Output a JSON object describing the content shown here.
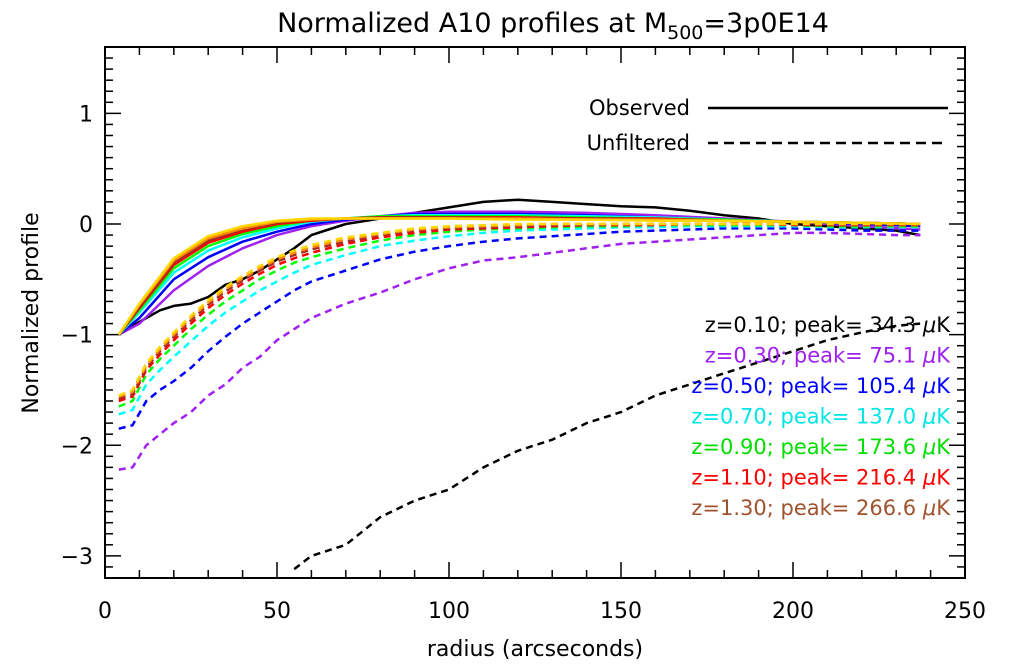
{
  "chart_data": {
    "type": "line",
    "title_main": "Normalized A10 profiles at M",
    "title_sub": "500",
    "title_tail": "=3p0E14",
    "xlabel": "radius (arcseconds)",
    "ylabel": "Normalized profile",
    "xlim": [
      0,
      250
    ],
    "ylim": [
      -3.2,
      1.6
    ],
    "xticks": [
      0,
      50,
      100,
      150,
      200,
      250
    ],
    "xtick_labels": [
      "0",
      "50",
      "100",
      "150",
      "200",
      "250"
    ],
    "yticks": [
      1,
      0,
      -1,
      -2,
      -3
    ],
    "ytick_labels": [
      "1",
      "0",
      "−1",
      "−2",
      "−3"
    ],
    "grid": false,
    "legend": [
      {
        "label": "Observed",
        "style": "solid"
      },
      {
        "label": "Unfiltered",
        "style": "dashed"
      }
    ],
    "colors": {
      "z010": "#000000",
      "z030": "#a020f0",
      "z050": "#0000ff",
      "z070": "#00ffff",
      "z090": "#00ff00",
      "z110": "#ff0000",
      "z130": "#a52a2a",
      "extra_orange": "#ff8c00",
      "extra_yellow": "#ffd700"
    },
    "annotations": [
      {
        "z": "z=0.10",
        "peak_text": "; peak=  34.3 ",
        "unit_mu": "μ",
        "unit_k": "K",
        "color": "#000000"
      },
      {
        "z": "z=0.30",
        "peak_text": "; peak=  75.1 ",
        "unit_mu": "μ",
        "unit_k": "K",
        "color": "#a020f0"
      },
      {
        "z": "z=0.50",
        "peak_text": "; peak= 105.4 ",
        "unit_mu": "μ",
        "unit_k": "K",
        "color": "#0000ff"
      },
      {
        "z": "z=0.70",
        "peak_text": "; peak= 137.0 ",
        "unit_mu": "μ",
        "unit_k": "K",
        "color": "#00e5e5"
      },
      {
        "z": "z=0.90",
        "peak_text": "; peak= 173.6 ",
        "unit_mu": "μ",
        "unit_k": "K",
        "color": "#00dd00"
      },
      {
        "z": "z=1.10",
        "peak_text": "; peak= 216.4 ",
        "unit_mu": "μ",
        "unit_k": "K",
        "color": "#ff0000"
      },
      {
        "z": "z=1.30",
        "peak_text": "; peak= 266.6 ",
        "unit_mu": "μ",
        "unit_k": "K",
        "color": "#a0522d"
      }
    ],
    "observed_series": [
      {
        "color": "#000000",
        "x": [
          4,
          8,
          12,
          16,
          20,
          25,
          30,
          35,
          40,
          45,
          50,
          55,
          60,
          65,
          70,
          80,
          90,
          100,
          110,
          120,
          130,
          140,
          150,
          160,
          170,
          180,
          190,
          200,
          210,
          220,
          230,
          237
        ],
        "y": [
          -1.0,
          -0.92,
          -0.85,
          -0.78,
          -0.74,
          -0.72,
          -0.66,
          -0.55,
          -0.5,
          -0.42,
          -0.32,
          -0.22,
          -0.1,
          -0.05,
          0.0,
          0.05,
          0.1,
          0.15,
          0.2,
          0.22,
          0.2,
          0.18,
          0.16,
          0.15,
          0.12,
          0.08,
          0.05,
          0.0,
          -0.02,
          -0.04,
          -0.06,
          -0.1
        ]
      },
      {
        "color": "#a020f0",
        "x": [
          4,
          10,
          20,
          30,
          40,
          50,
          60,
          70,
          80,
          90,
          100,
          120,
          140,
          160,
          180,
          200,
          220,
          237
        ],
        "y": [
          -1.0,
          -0.9,
          -0.6,
          -0.38,
          -0.22,
          -0.1,
          -0.02,
          0.03,
          0.07,
          0.1,
          0.11,
          0.11,
          0.1,
          0.08,
          0.05,
          0.02,
          -0.02,
          -0.05
        ]
      },
      {
        "color": "#0000ff",
        "x": [
          4,
          10,
          20,
          30,
          40,
          50,
          60,
          70,
          80,
          90,
          100,
          120,
          140,
          160,
          180,
          200,
          220,
          237
        ],
        "y": [
          -1.0,
          -0.85,
          -0.5,
          -0.3,
          -0.16,
          -0.07,
          0.0,
          0.04,
          0.07,
          0.09,
          0.09,
          0.09,
          0.08,
          0.06,
          0.04,
          0.02,
          0.0,
          -0.02
        ]
      },
      {
        "color": "#00ffff",
        "x": [
          4,
          10,
          20,
          30,
          40,
          50,
          60,
          70,
          80,
          90,
          100,
          120,
          140,
          160,
          180,
          200,
          220,
          237
        ],
        "y": [
          -1.0,
          -0.8,
          -0.44,
          -0.24,
          -0.12,
          -0.04,
          0.02,
          0.05,
          0.07,
          0.08,
          0.08,
          0.08,
          0.07,
          0.06,
          0.04,
          0.02,
          0.01,
          0.0
        ]
      },
      {
        "color": "#00ff00",
        "x": [
          4,
          10,
          20,
          30,
          40,
          50,
          60,
          70,
          80,
          90,
          100,
          120,
          140,
          160,
          180,
          200,
          220,
          237
        ],
        "y": [
          -1.0,
          -0.78,
          -0.4,
          -0.2,
          -0.09,
          -0.02,
          0.03,
          0.05,
          0.07,
          0.07,
          0.07,
          0.07,
          0.06,
          0.05,
          0.04,
          0.02,
          0.01,
          0.0
        ]
      },
      {
        "color": "#ff0000",
        "x": [
          4,
          10,
          20,
          30,
          40,
          50,
          60,
          70,
          80,
          90,
          100,
          120,
          140,
          160,
          180,
          200,
          220,
          237
        ],
        "y": [
          -1.0,
          -0.76,
          -0.37,
          -0.17,
          -0.07,
          0.0,
          0.03,
          0.05,
          0.06,
          0.06,
          0.06,
          0.06,
          0.05,
          0.05,
          0.03,
          0.02,
          0.01,
          0.0
        ]
      },
      {
        "color": "#a52a2a",
        "x": [
          4,
          10,
          20,
          30,
          40,
          50,
          60,
          70,
          80,
          90,
          100,
          120,
          140,
          160,
          180,
          200,
          220,
          237
        ],
        "y": [
          -1.0,
          -0.75,
          -0.35,
          -0.15,
          -0.05,
          0.01,
          0.04,
          0.05,
          0.06,
          0.06,
          0.06,
          0.05,
          0.05,
          0.04,
          0.03,
          0.02,
          0.01,
          0.0
        ]
      },
      {
        "color": "#ff8c00",
        "x": [
          4,
          10,
          20,
          30,
          40,
          50,
          60,
          70,
          80,
          90,
          100,
          120,
          140,
          160,
          180,
          200,
          220,
          237
        ],
        "y": [
          -1.0,
          -0.73,
          -0.33,
          -0.13,
          -0.04,
          0.02,
          0.04,
          0.05,
          0.05,
          0.05,
          0.05,
          0.05,
          0.04,
          0.04,
          0.03,
          0.02,
          0.01,
          0.0
        ]
      },
      {
        "color": "#ffd700",
        "x": [
          4,
          10,
          20,
          30,
          40,
          50,
          60,
          70,
          80,
          90,
          100,
          120,
          140,
          160,
          180,
          200,
          220,
          237
        ],
        "y": [
          -1.0,
          -0.72,
          -0.31,
          -0.11,
          -0.02,
          0.03,
          0.05,
          0.05,
          0.05,
          0.05,
          0.05,
          0.04,
          0.04,
          0.03,
          0.03,
          0.02,
          0.01,
          0.0
        ]
      }
    ],
    "unfiltered_series": [
      {
        "color": "#000000",
        "x": [
          55,
          60,
          70,
          80,
          90,
          100,
          110,
          120,
          130,
          140,
          150,
          160,
          170,
          180,
          190,
          200,
          210,
          220,
          230,
          237
        ],
        "y": [
          -3.12,
          -3.0,
          -2.9,
          -2.65,
          -2.5,
          -2.4,
          -2.2,
          -2.05,
          -1.95,
          -1.8,
          -1.7,
          -1.55,
          -1.45,
          -1.35,
          -1.25,
          -1.15,
          -1.05,
          -0.98,
          -0.92,
          -0.9
        ]
      },
      {
        "color": "#a020f0",
        "x": [
          4,
          8,
          12,
          16,
          20,
          25,
          30,
          35,
          40,
          45,
          50,
          55,
          60,
          70,
          80,
          90,
          100,
          110,
          120,
          130,
          140,
          150,
          160,
          170,
          180,
          190,
          200,
          210,
          220,
          230,
          237
        ],
        "y": [
          -2.22,
          -2.2,
          -2.0,
          -1.9,
          -1.8,
          -1.7,
          -1.55,
          -1.45,
          -1.3,
          -1.2,
          -1.05,
          -0.95,
          -0.85,
          -0.72,
          -0.62,
          -0.5,
          -0.4,
          -0.33,
          -0.3,
          -0.26,
          -0.22,
          -0.18,
          -0.16,
          -0.14,
          -0.12,
          -0.1,
          -0.08,
          -0.08,
          -0.09,
          -0.1,
          -0.1
        ]
      },
      {
        "color": "#0000ff",
        "x": [
          4,
          8,
          12,
          16,
          20,
          25,
          30,
          35,
          40,
          45,
          50,
          55,
          60,
          70,
          80,
          90,
          100,
          110,
          120,
          130,
          140,
          150,
          160,
          170,
          180,
          190,
          200,
          210,
          220,
          230,
          237
        ],
        "y": [
          -1.85,
          -1.82,
          -1.6,
          -1.5,
          -1.42,
          -1.3,
          -1.15,
          -1.02,
          -0.9,
          -0.8,
          -0.7,
          -0.6,
          -0.52,
          -0.42,
          -0.32,
          -0.25,
          -0.2,
          -0.16,
          -0.13,
          -0.11,
          -0.09,
          -0.07,
          -0.06,
          -0.05,
          -0.04,
          -0.04,
          -0.04,
          -0.05,
          -0.06,
          -0.06,
          -0.06
        ]
      },
      {
        "color": "#00ffff",
        "x": [
          4,
          8,
          12,
          16,
          20,
          25,
          30,
          35,
          40,
          45,
          50,
          55,
          60,
          70,
          80,
          90,
          100,
          110,
          120,
          130,
          140,
          150,
          160,
          170,
          180,
          190,
          200,
          210,
          220,
          230,
          237
        ],
        "y": [
          -1.72,
          -1.68,
          -1.45,
          -1.32,
          -1.2,
          -1.06,
          -0.92,
          -0.8,
          -0.7,
          -0.6,
          -0.52,
          -0.44,
          -0.37,
          -0.28,
          -0.2,
          -0.15,
          -0.11,
          -0.08,
          -0.06,
          -0.05,
          -0.04,
          -0.03,
          -0.03,
          -0.02,
          -0.02,
          -0.02,
          -0.02,
          -0.03,
          -0.03,
          -0.03,
          -0.03
        ]
      },
      {
        "color": "#00ff00",
        "x": [
          4,
          8,
          12,
          16,
          20,
          25,
          30,
          35,
          40,
          45,
          50,
          55,
          60,
          70,
          80,
          90,
          100,
          110,
          120,
          130,
          140,
          150,
          160,
          170,
          180,
          190,
          200,
          210,
          220,
          230,
          237
        ],
        "y": [
          -1.65,
          -1.6,
          -1.36,
          -1.22,
          -1.1,
          -0.95,
          -0.82,
          -0.7,
          -0.6,
          -0.5,
          -0.42,
          -0.35,
          -0.3,
          -0.22,
          -0.15,
          -0.1,
          -0.07,
          -0.05,
          -0.04,
          -0.03,
          -0.02,
          -0.02,
          -0.01,
          -0.01,
          -0.01,
          -0.01,
          -0.01,
          -0.02,
          -0.02,
          -0.02,
          -0.02
        ]
      },
      {
        "color": "#ff0000",
        "x": [
          4,
          8,
          12,
          16,
          20,
          25,
          30,
          35,
          40,
          45,
          50,
          55,
          60,
          70,
          80,
          90,
          100,
          110,
          120,
          130,
          140,
          150,
          160,
          170,
          180,
          190,
          200,
          210,
          220,
          230,
          237
        ],
        "y": [
          -1.6,
          -1.56,
          -1.32,
          -1.18,
          -1.05,
          -0.9,
          -0.76,
          -0.64,
          -0.54,
          -0.45,
          -0.37,
          -0.31,
          -0.26,
          -0.18,
          -0.12,
          -0.08,
          -0.05,
          -0.04,
          -0.03,
          -0.02,
          -0.01,
          -0.01,
          -0.01,
          0.0,
          0.0,
          0.0,
          -0.01,
          -0.01,
          -0.01,
          -0.01,
          -0.01
        ]
      },
      {
        "color": "#a52a2a",
        "x": [
          4,
          8,
          12,
          16,
          20,
          25,
          30,
          35,
          40,
          45,
          50,
          55,
          60,
          70,
          80,
          90,
          100,
          110,
          120,
          130,
          140,
          150,
          160,
          170,
          180,
          190,
          200,
          210,
          220,
          230,
          237
        ],
        "y": [
          -1.58,
          -1.54,
          -1.3,
          -1.15,
          -1.02,
          -0.87,
          -0.73,
          -0.61,
          -0.51,
          -0.42,
          -0.34,
          -0.28,
          -0.23,
          -0.16,
          -0.1,
          -0.06,
          -0.04,
          -0.03,
          -0.02,
          -0.01,
          -0.01,
          0.0,
          0.0,
          0.0,
          0.0,
          0.0,
          0.0,
          0.0,
          0.0,
          0.0,
          0.0
        ]
      },
      {
        "color": "#ff8c00",
        "x": [
          4,
          8,
          12,
          16,
          20,
          25,
          30,
          35,
          40,
          45,
          50,
          55,
          60,
          70,
          80,
          90,
          100,
          110,
          120,
          130,
          140,
          150,
          160,
          170,
          180,
          190,
          200,
          210,
          220,
          230,
          237
        ],
        "y": [
          -1.56,
          -1.52,
          -1.28,
          -1.13,
          -1.0,
          -0.85,
          -0.71,
          -0.59,
          -0.49,
          -0.4,
          -0.32,
          -0.26,
          -0.21,
          -0.14,
          -0.09,
          -0.05,
          -0.03,
          -0.02,
          -0.01,
          0.0,
          0.0,
          0.0,
          0.0,
          0.0,
          0.0,
          0.0,
          0.0,
          0.0,
          0.0,
          0.0,
          0.0
        ]
      },
      {
        "color": "#ffd700",
        "x": [
          4,
          8,
          12,
          16,
          20,
          25,
          30,
          35,
          40,
          45,
          50,
          55,
          60,
          70,
          80,
          90,
          100,
          110,
          120,
          130,
          140,
          150,
          160,
          170,
          180,
          190,
          200,
          210,
          220,
          230,
          237
        ],
        "y": [
          -1.55,
          -1.5,
          -1.26,
          -1.11,
          -0.98,
          -0.83,
          -0.69,
          -0.57,
          -0.47,
          -0.38,
          -0.3,
          -0.24,
          -0.19,
          -0.12,
          -0.08,
          -0.04,
          -0.02,
          -0.01,
          0.0,
          0.0,
          0.0,
          0.0,
          0.0,
          0.0,
          0.0,
          0.0,
          0.0,
          0.0,
          0.0,
          0.0,
          0.0
        ]
      }
    ]
  }
}
